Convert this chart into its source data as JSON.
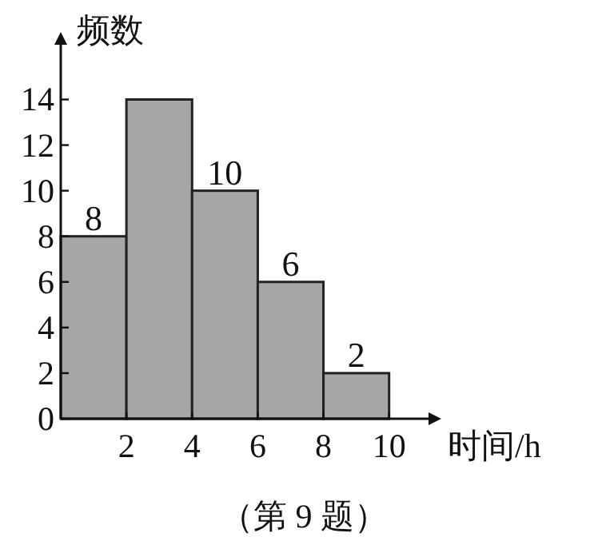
{
  "chart_data": {
    "type": "histogram",
    "ylabel": "频数",
    "xlabel": "时间/h",
    "annotations": [
      "（第 9 题）"
    ],
    "bins": [
      0,
      2,
      4,
      6,
      8,
      10
    ],
    "values": [
      8,
      14,
      10,
      6,
      2
    ],
    "value_labels": [
      "8",
      null,
      "10",
      "6",
      "2"
    ],
    "color": "#a6a6a6",
    "xlim": [
      0,
      11.2
    ],
    "ylim": [
      0,
      16.4
    ],
    "xticks": [
      2,
      4,
      6,
      8,
      10
    ],
    "yticks": [
      0,
      2,
      4,
      6,
      8,
      10,
      12,
      14
    ],
    "grid": false
  }
}
